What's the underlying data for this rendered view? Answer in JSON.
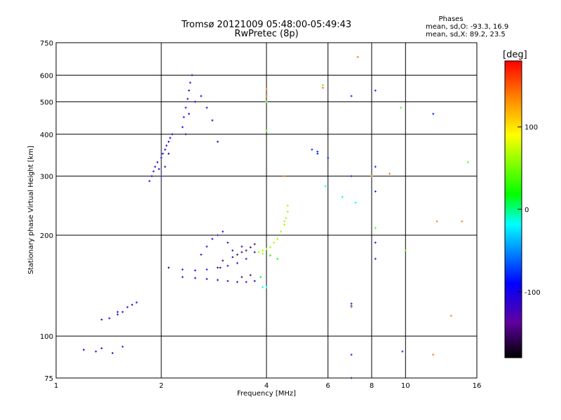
{
  "chart_data": {
    "type": "scatter",
    "title": "Tromsø 20121009 05:48:00-05:49:43",
    "subtitle": "RwPretec (8p)",
    "xlabel": "Frequency [MHz]",
    "ylabel": "Stationary phase Virtual Height [km]",
    "x_scale": "log",
    "y_scale": "log",
    "xlim": [
      1,
      16
    ],
    "ylim": [
      75,
      750
    ],
    "x_ticks": [
      1,
      2,
      4,
      6,
      8,
      10,
      16
    ],
    "x_tick_labels": [
      "1",
      "2",
      "4",
      "6",
      "8",
      "10",
      "16"
    ],
    "y_ticks": [
      75,
      100,
      200,
      300,
      400,
      500,
      600,
      750
    ],
    "y_tick_labels": [
      "75",
      "100",
      "200",
      "300",
      "400",
      "500",
      "600",
      "750"
    ],
    "grid": true,
    "stats": {
      "header": "Phases",
      "line_o": "mean, sd,O: -93.3, 16.9",
      "line_x": "mean, sd,X:  89.2, 23.5"
    },
    "colorbar": {
      "label": "[deg]",
      "min": -180,
      "max": 180,
      "ticks": [
        100,
        0,
        -100
      ],
      "tick_labels": [
        "100",
        "0",
        "-100"
      ]
    },
    "series": [
      {
        "color_value": -110,
        "points": [
          [
            1.85,
            290
          ],
          [
            1.88,
            300
          ],
          [
            1.9,
            310
          ],
          [
            1.92,
            320
          ],
          [
            1.95,
            330
          ],
          [
            1.97,
            315
          ],
          [
            2.0,
            340
          ],
          [
            2.02,
            350
          ],
          [
            2.05,
            360
          ],
          [
            2.07,
            370
          ],
          [
            2.1,
            380
          ],
          [
            2.12,
            390
          ],
          [
            2.15,
            400
          ],
          [
            2.0,
            300
          ],
          [
            2.05,
            320
          ],
          [
            2.1,
            350
          ],
          [
            2.3,
            420
          ],
          [
            2.32,
            450
          ],
          [
            2.35,
            480
          ],
          [
            2.38,
            510
          ],
          [
            2.4,
            540
          ],
          [
            2.42,
            570
          ],
          [
            2.45,
            600
          ],
          [
            2.35,
            400
          ],
          [
            2.4,
            460
          ],
          [
            2.5,
            500
          ],
          [
            2.6,
            520
          ],
          [
            2.7,
            480
          ],
          [
            2.8,
            440
          ],
          [
            2.9,
            380
          ],
          [
            2.1,
            160
          ],
          [
            2.3,
            158
          ],
          [
            2.5,
            157
          ],
          [
            2.7,
            158
          ],
          [
            2.9,
            160
          ],
          [
            3.1,
            162
          ],
          [
            3.3,
            165
          ],
          [
            3.5,
            170
          ],
          [
            3.7,
            178
          ],
          [
            2.3,
            150
          ],
          [
            2.5,
            149
          ],
          [
            2.7,
            148
          ],
          [
            2.9,
            147
          ],
          [
            3.1,
            146
          ],
          [
            3.3,
            145
          ],
          [
            3.5,
            145
          ],
          [
            3.7,
            146
          ],
          [
            2.6,
            175
          ],
          [
            2.7,
            185
          ],
          [
            2.8,
            195
          ],
          [
            2.9,
            200
          ],
          [
            3.0,
            205
          ],
          [
            3.1,
            190
          ],
          [
            3.2,
            180
          ],
          [
            3.4,
            185
          ],
          [
            1.35,
            112
          ],
          [
            1.42,
            113
          ],
          [
            1.5,
            116
          ],
          [
            1.55,
            118
          ],
          [
            1.6,
            122
          ],
          [
            1.65,
            124
          ],
          [
            1.7,
            126
          ],
          [
            1.5,
            118
          ],
          [
            1.2,
            91
          ],
          [
            1.3,
            90
          ],
          [
            1.35,
            92
          ],
          [
            1.45,
            89
          ],
          [
            1.55,
            93
          ]
        ]
      },
      {
        "color_value": -150,
        "points": [
          [
            3.3,
            175
          ],
          [
            3.4,
            178
          ],
          [
            3.5,
            180
          ],
          [
            3.6,
            184
          ],
          [
            3.7,
            188
          ],
          [
            3.2,
            172
          ],
          [
            3.0,
            168
          ],
          [
            3.4,
            150
          ],
          [
            3.6,
            152
          ],
          [
            2.95,
            160
          ]
        ]
      },
      {
        "color_value": 60,
        "points": [
          [
            3.8,
            178
          ],
          [
            3.9,
            180
          ],
          [
            4.0,
            182
          ],
          [
            4.1,
            184
          ],
          [
            4.2,
            190
          ],
          [
            4.3,
            195
          ],
          [
            4.4,
            205
          ],
          [
            4.5,
            215
          ],
          [
            4.55,
            225
          ],
          [
            4.6,
            235
          ],
          [
            4.6,
            245
          ],
          [
            4.5,
            220
          ],
          [
            3.9,
            176
          ]
        ]
      },
      {
        "color_value": 20,
        "points": [
          [
            4.1,
            174
          ],
          [
            3.85,
            150
          ],
          [
            4.3,
            170
          ]
        ]
      },
      {
        "color_value": -20,
        "points": [
          [
            3.9,
            140
          ],
          [
            4.0,
            140
          ],
          [
            5.9,
            280
          ],
          [
            6.6,
            260
          ],
          [
            7.2,
            250
          ]
        ]
      },
      {
        "color_value": -80,
        "points": [
          [
            4.0,
            520
          ],
          [
            5.4,
            360
          ],
          [
            5.6,
            350
          ],
          [
            7.0,
            125
          ],
          [
            7.0,
            123
          ],
          [
            7.0,
            88
          ],
          [
            7.0,
            75
          ],
          [
            7.0,
            520
          ],
          [
            7.0,
            300
          ],
          [
            8.2,
            540
          ],
          [
            8.2,
            320
          ],
          [
            8.2,
            190
          ],
          [
            8.2,
            170
          ],
          [
            9.8,
            90
          ],
          [
            8.2,
            270
          ],
          [
            12.0,
            460
          ],
          [
            6.0,
            340
          ],
          [
            5.6,
            355
          ]
        ]
      },
      {
        "color_value": 40,
        "points": [
          [
            4.0,
            410
          ],
          [
            4.0,
            500
          ],
          [
            5.8,
            560
          ],
          [
            8.2,
            210
          ],
          [
            9.7,
            480
          ],
          [
            10.0,
            180
          ],
          [
            15.1,
            330
          ]
        ]
      },
      {
        "color_value": 140,
        "points": [
          [
            4.0,
            545
          ],
          [
            4.0,
            520
          ],
          [
            4.5,
            300
          ],
          [
            5.8,
            550
          ],
          [
            7.3,
            680
          ],
          [
            8.0,
            300
          ],
          [
            9.0,
            305
          ],
          [
            12.0,
            88
          ],
          [
            12.3,
            220
          ],
          [
            13.5,
            115
          ],
          [
            14.5,
            220
          ],
          [
            7.0,
            122
          ]
        ]
      }
    ]
  }
}
